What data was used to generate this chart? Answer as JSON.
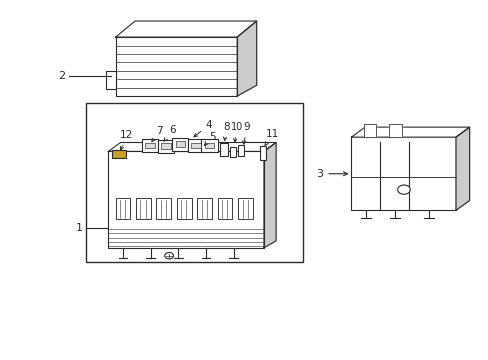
{
  "background_color": "#ffffff",
  "line_color": "#2a2a2a",
  "figure_width": 4.89,
  "figure_height": 3.6,
  "dpi": 100
}
